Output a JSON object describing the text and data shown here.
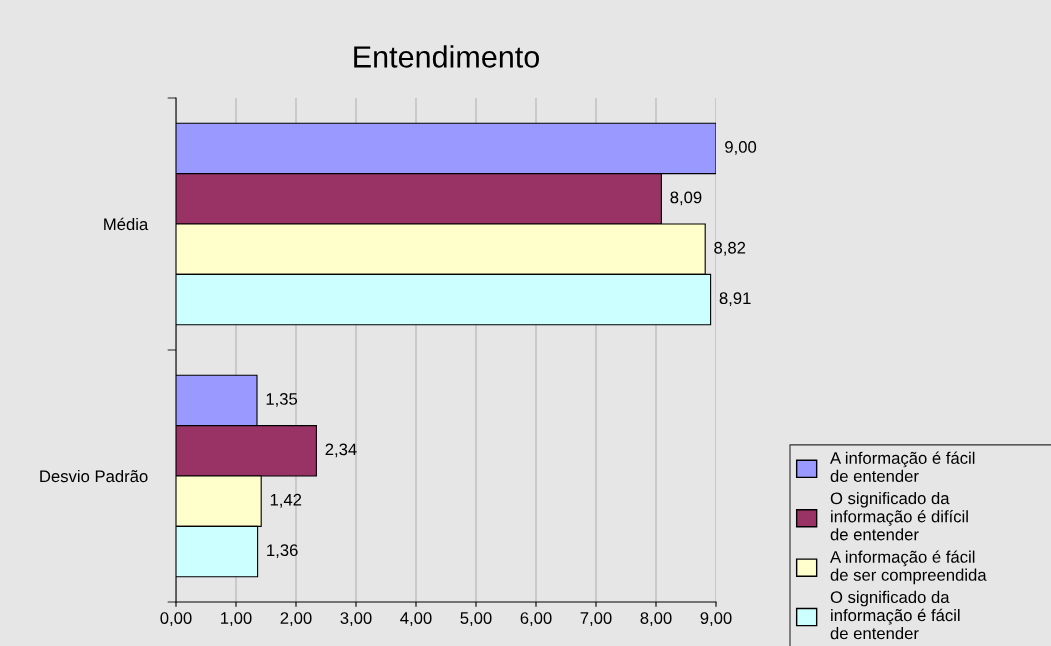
{
  "chart_data": {
    "type": "bar",
    "orientation": "horizontal",
    "title": "Entendimento",
    "categories": [
      "Média",
      "Desvio Padrão"
    ],
    "series": [
      {
        "name": "A informação é fácil de entender",
        "color": "#9999ff",
        "values": [
          9.0,
          1.35
        ],
        "value_labels": [
          "9,00",
          "1,35"
        ]
      },
      {
        "name": "O significado da informação é difícil de entender",
        "color": "#993366",
        "values": [
          8.09,
          2.34
        ],
        "value_labels": [
          "8,09",
          "2,34"
        ]
      },
      {
        "name": "A informação é fácil de ser compreendida",
        "color": "#ffffcc",
        "values": [
          8.82,
          1.42
        ],
        "value_labels": [
          "8,82",
          "1,42"
        ]
      },
      {
        "name": "O significado da informação é fácil de entender",
        "color": "#ccffff",
        "values": [
          8.91,
          1.36
        ],
        "value_labels": [
          "8,91",
          "1,36"
        ]
      }
    ],
    "xlim": [
      0,
      9
    ],
    "xticks": [
      {
        "value": 0,
        "label": "0,00"
      },
      {
        "value": 1,
        "label": "1,00"
      },
      {
        "value": 2,
        "label": "2,00"
      },
      {
        "value": 3,
        "label": "3,00"
      },
      {
        "value": 4,
        "label": "4,00"
      },
      {
        "value": 5,
        "label": "5,00"
      },
      {
        "value": 6,
        "label": "6,00"
      },
      {
        "value": 7,
        "label": "7,00"
      },
      {
        "value": 8,
        "label": "8,00"
      },
      {
        "value": 9,
        "label": "9,00"
      }
    ],
    "grid": "x",
    "legend": "bottom right"
  }
}
